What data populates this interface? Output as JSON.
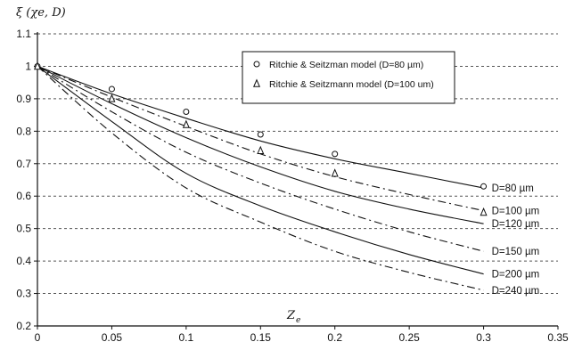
{
  "chart_data": {
    "type": "line",
    "ylabel": "ξ (χe, D)",
    "xlabel": "Z",
    "xlabel_sub": "e",
    "xlim": [
      0,
      0.35
    ],
    "ylim": [
      0.2,
      1.1
    ],
    "x_ticks": [
      "0",
      "0.05",
      "0.1",
      "0.15",
      "0.2",
      "0.25",
      "0.3",
      "0.35"
    ],
    "y_ticks": [
      "0.2",
      "0.3",
      "0.4",
      "0.5",
      "0.6",
      "0.7",
      "0.8",
      "0.9",
      "1",
      "1.1"
    ],
    "grid": "horizontal dashed",
    "legend_position": "top-right",
    "x": [
      0,
      0.05,
      0.1,
      0.15,
      0.2,
      0.25,
      0.3
    ],
    "series": [
      {
        "name": "D=80 µm",
        "style": "solid",
        "values": [
          1.0,
          0.915,
          0.84,
          0.77,
          0.715,
          0.67,
          0.625
        ]
      },
      {
        "name": "D=100 µm",
        "style": "dashdot",
        "values": [
          1.0,
          0.905,
          0.815,
          0.73,
          0.66,
          0.605,
          0.555
        ]
      },
      {
        "name": "D=120 µm",
        "style": "solid",
        "values": [
          1.0,
          0.885,
          0.78,
          0.69,
          0.615,
          0.56,
          0.515
        ]
      },
      {
        "name": "D=150 µm",
        "style": "dashdot",
        "values": [
          1.0,
          0.86,
          0.735,
          0.64,
          0.56,
          0.49,
          0.43
        ]
      },
      {
        "name": "D=200 µm",
        "style": "solid",
        "values": [
          1.0,
          0.83,
          0.67,
          0.57,
          0.49,
          0.42,
          0.36
        ]
      },
      {
        "name": "D=240 µm",
        "style": "dashdot",
        "values": [
          1.0,
          0.795,
          0.625,
          0.52,
          0.43,
          0.365,
          0.31
        ]
      }
    ],
    "markers": [
      {
        "name": "Ritchie & Seitzman model (D=80 µm)",
        "symbol": "circle",
        "x": [
          0,
          0.05,
          0.1,
          0.15,
          0.2,
          0.3
        ],
        "values": [
          1.0,
          0.93,
          0.86,
          0.79,
          0.73,
          0.63
        ]
      },
      {
        "name": "Ritchie & Seitzmann model (D=100 um)",
        "symbol": "triangle",
        "x": [
          0,
          0.05,
          0.1,
          0.15,
          0.2,
          0.3
        ],
        "values": [
          1.0,
          0.9,
          0.82,
          0.74,
          0.67,
          0.55
        ]
      }
    ],
    "line_color": "#111111",
    "grid_color": "#555555"
  }
}
